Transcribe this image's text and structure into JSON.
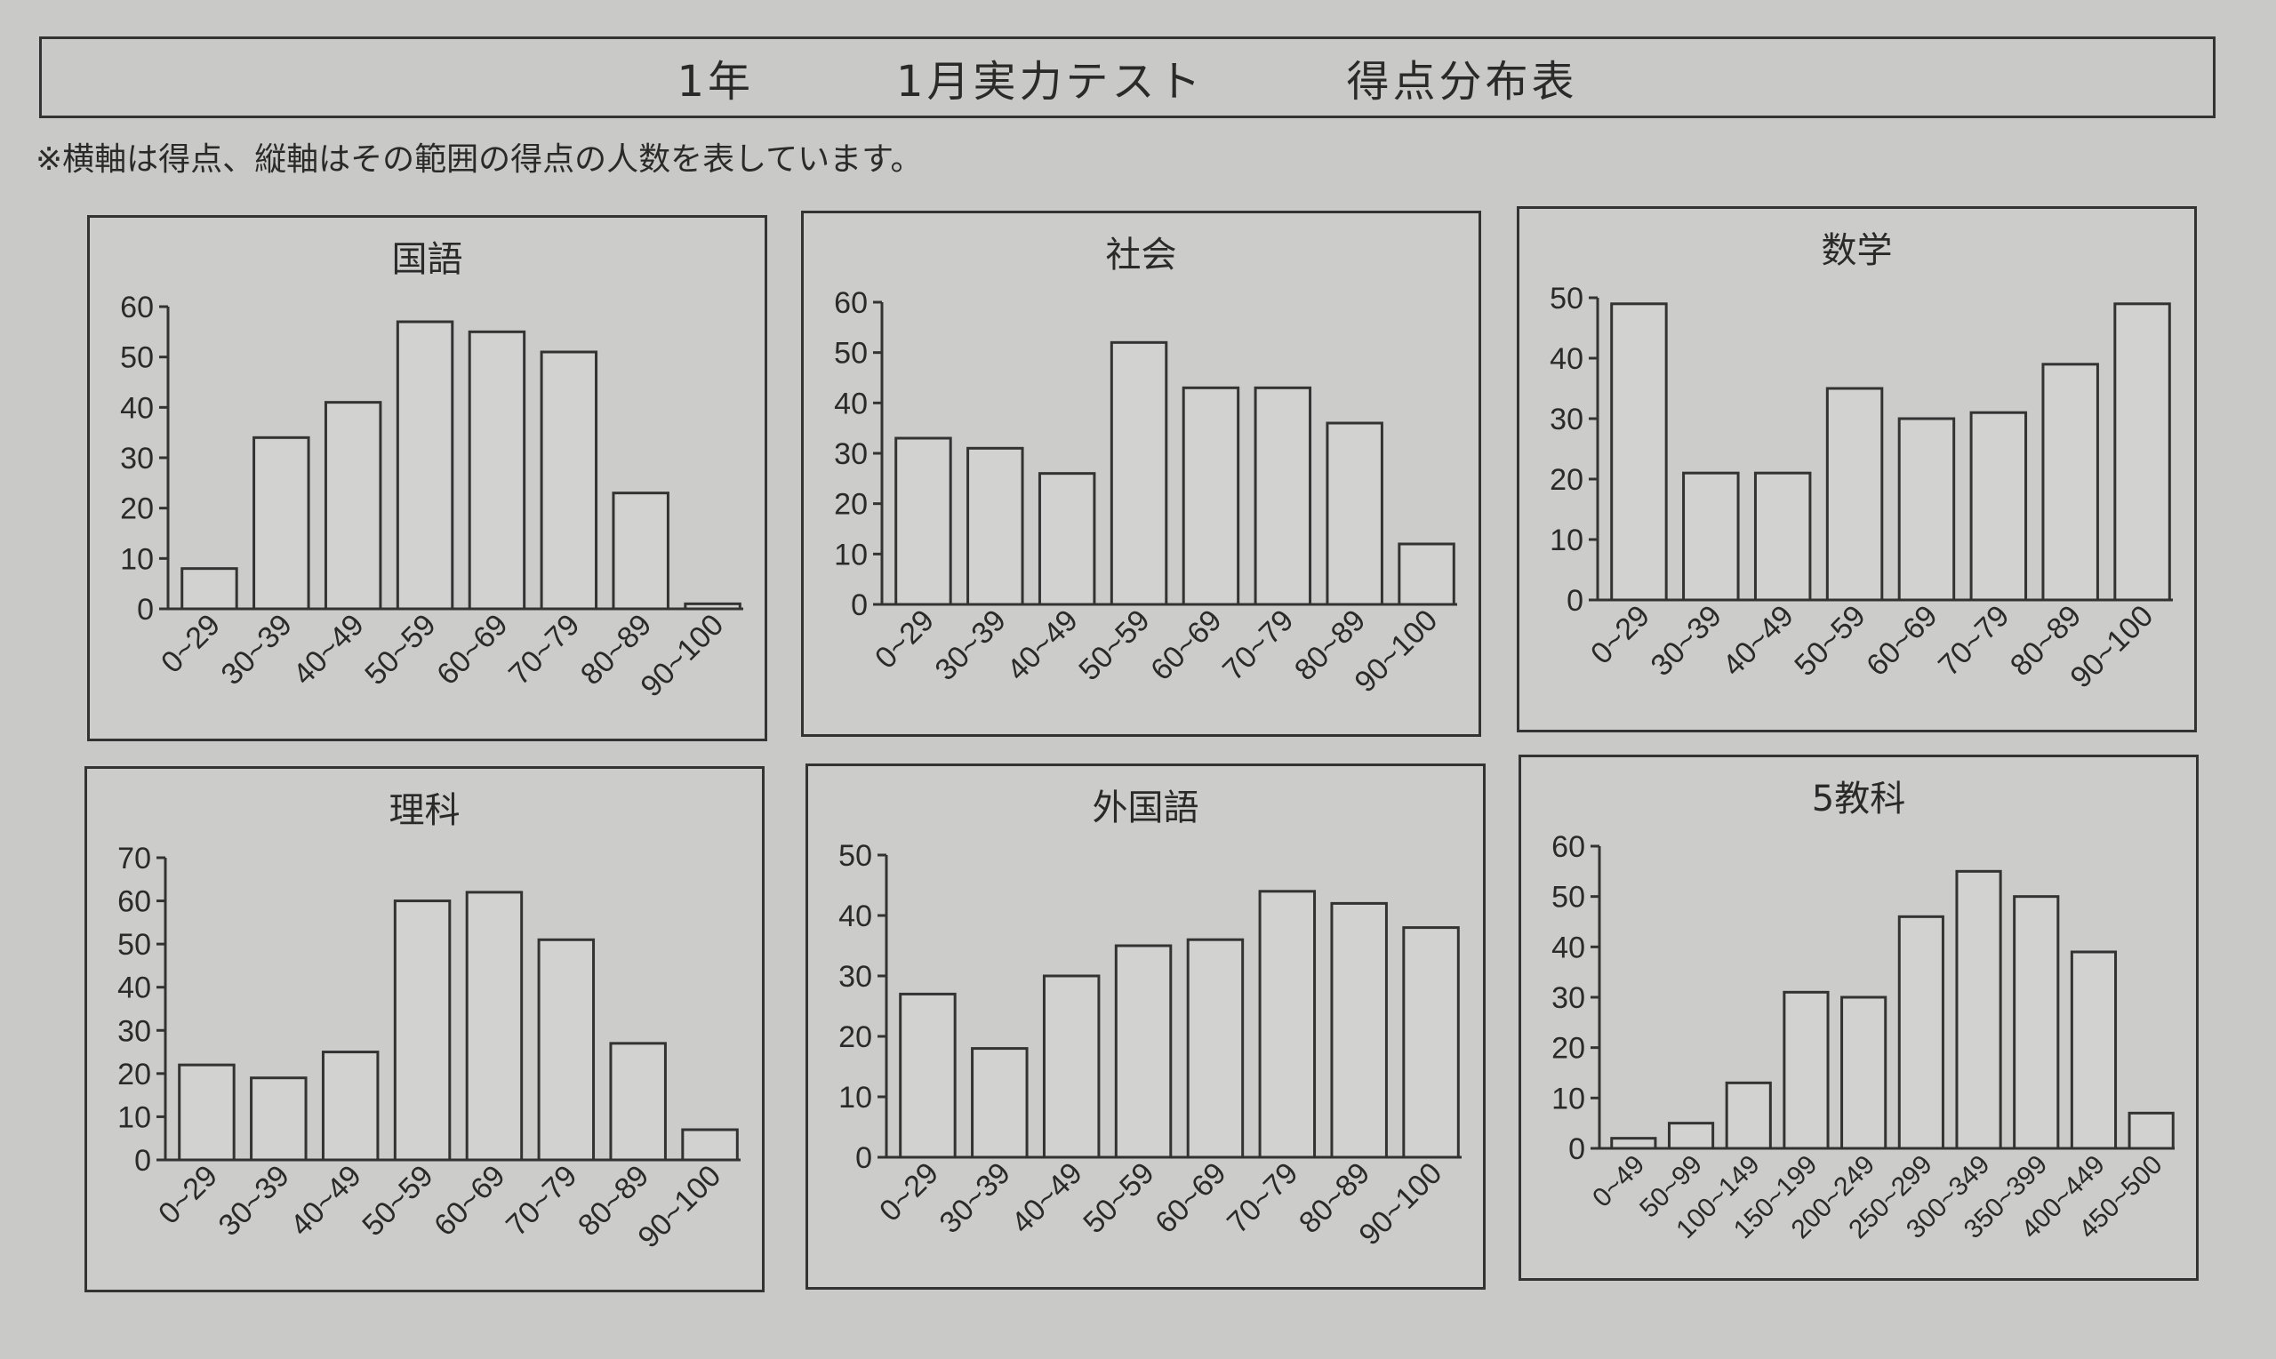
{
  "header": {
    "grade": "1年",
    "test": "1月実力テスト",
    "table": "得点分布表"
  },
  "note": "※横軸は得点、縦軸はその範囲の得点の人数を表しています。",
  "chart_data": [
    {
      "type": "bar",
      "title": "国語",
      "categories": [
        "0~29",
        "30~39",
        "40~49",
        "50~59",
        "60~69",
        "70~79",
        "80~89",
        "90~100"
      ],
      "values": [
        8,
        34,
        41,
        57,
        55,
        51,
        23,
        1
      ],
      "ylim": [
        0,
        60
      ],
      "yticks": [
        0,
        10,
        20,
        30,
        40,
        50,
        60
      ],
      "xlabel": "",
      "ylabel": ""
    },
    {
      "type": "bar",
      "title": "社会",
      "categories": [
        "0~29",
        "30~39",
        "40~49",
        "50~59",
        "60~69",
        "70~79",
        "80~89",
        "90~100"
      ],
      "values": [
        33,
        31,
        26,
        52,
        43,
        43,
        36,
        12
      ],
      "ylim": [
        0,
        60
      ],
      "yticks": [
        0,
        10,
        20,
        30,
        40,
        50,
        60
      ],
      "xlabel": "",
      "ylabel": ""
    },
    {
      "type": "bar",
      "title": "数学",
      "categories": [
        "0~29",
        "30~39",
        "40~49",
        "50~59",
        "60~69",
        "70~79",
        "80~89",
        "90~100"
      ],
      "values": [
        49,
        21,
        21,
        35,
        30,
        31,
        39,
        49
      ],
      "ylim": [
        0,
        50
      ],
      "yticks": [
        0,
        10,
        20,
        30,
        40,
        50
      ],
      "xlabel": "",
      "ylabel": ""
    },
    {
      "type": "bar",
      "title": "理科",
      "categories": [
        "0~29",
        "30~39",
        "40~49",
        "50~59",
        "60~69",
        "70~79",
        "80~89",
        "90~100"
      ],
      "values": [
        22,
        19,
        25,
        60,
        62,
        51,
        27,
        7
      ],
      "ylim": [
        0,
        70
      ],
      "yticks": [
        0,
        10,
        20,
        30,
        40,
        50,
        60,
        70
      ],
      "xlabel": "",
      "ylabel": ""
    },
    {
      "type": "bar",
      "title": "外国語",
      "categories": [
        "0~29",
        "30~39",
        "40~49",
        "50~59",
        "60~69",
        "70~79",
        "80~89",
        "90~100"
      ],
      "values": [
        27,
        18,
        30,
        35,
        36,
        44,
        42,
        38
      ],
      "ylim": [
        0,
        50
      ],
      "yticks": [
        0,
        10,
        20,
        30,
        40,
        50
      ],
      "xlabel": "",
      "ylabel": ""
    },
    {
      "type": "bar",
      "title": "5教科",
      "categories": [
        "0~49",
        "50~99",
        "100~149",
        "150~199",
        "200~249",
        "250~299",
        "300~349",
        "350~399",
        "400~449",
        "450~500"
      ],
      "values": [
        2,
        5,
        13,
        31,
        30,
        46,
        55,
        50,
        39,
        7
      ],
      "ylim": [
        0,
        60
      ],
      "yticks": [
        0,
        10,
        20,
        30,
        40,
        50,
        60
      ],
      "xlabel": "",
      "ylabel": ""
    }
  ]
}
